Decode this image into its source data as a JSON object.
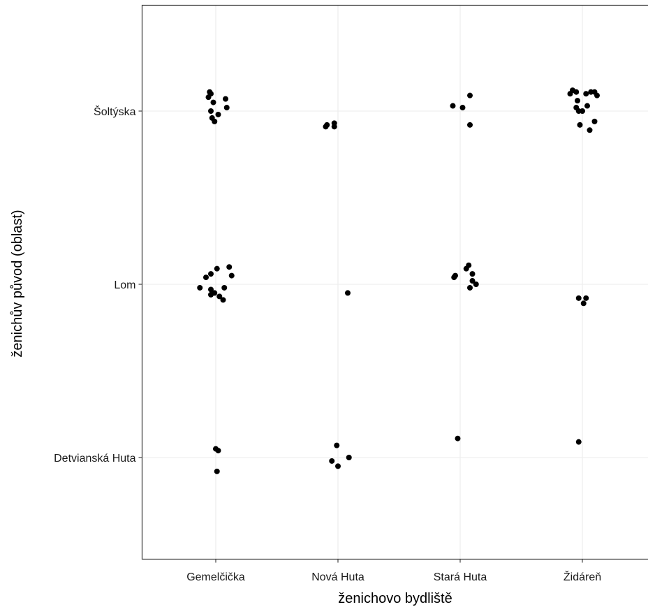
{
  "chart_data": {
    "type": "scatter",
    "xlabel": "ženichovo bydliště",
    "ylabel": "ženichův původ (oblast)",
    "x_categories": [
      "Gemelčička",
      "Nová Huta",
      "Stará Huta",
      "Židáreň"
    ],
    "y_categories": [
      "Detvianská Huta",
      "Lom",
      "Šoltýska"
    ],
    "grid": true,
    "point_color": "#000000",
    "panel_border_color": "#333333",
    "grid_color": "#ebebeb",
    "points": [
      {
        "x": 0.95,
        "y": 2.11
      },
      {
        "x": 0.96,
        "y": 2.1
      },
      {
        "x": 0.94,
        "y": 2.08
      },
      {
        "x": 0.98,
        "y": 2.05
      },
      {
        "x": 1.08,
        "y": 2.07
      },
      {
        "x": 1.09,
        "y": 2.02
      },
      {
        "x": 0.96,
        "y": 2.0
      },
      {
        "x": 1.02,
        "y": 1.98
      },
      {
        "x": 0.97,
        "y": 1.96
      },
      {
        "x": 0.99,
        "y": 1.94
      },
      {
        "x": 1.9,
        "y": 1.91
      },
      {
        "x": 1.91,
        "y": 1.92
      },
      {
        "x": 1.97,
        "y": 1.93
      },
      {
        "x": 1.97,
        "y": 1.91
      },
      {
        "x": 2.94,
        "y": 2.03
      },
      {
        "x": 3.02,
        "y": 2.02
      },
      {
        "x": 3.08,
        "y": 2.09
      },
      {
        "x": 3.08,
        "y": 1.92
      },
      {
        "x": 3.9,
        "y": 2.1
      },
      {
        "x": 3.92,
        "y": 2.12
      },
      {
        "x": 3.95,
        "y": 2.11
      },
      {
        "x": 4.03,
        "y": 2.1
      },
      {
        "x": 4.07,
        "y": 2.11
      },
      {
        "x": 4.1,
        "y": 2.11
      },
      {
        "x": 4.12,
        "y": 2.09
      },
      {
        "x": 3.96,
        "y": 2.06
      },
      {
        "x": 4.04,
        "y": 2.03
      },
      {
        "x": 3.95,
        "y": 2.02
      },
      {
        "x": 3.97,
        "y": 2.0
      },
      {
        "x": 4.0,
        "y": 2.0
      },
      {
        "x": 4.1,
        "y": 1.94
      },
      {
        "x": 3.98,
        "y": 1.92
      },
      {
        "x": 4.06,
        "y": 1.89
      },
      {
        "x": 0.87,
        "y": 0.98
      },
      {
        "x": 0.92,
        "y": 1.04
      },
      {
        "x": 0.96,
        "y": 1.06
      },
      {
        "x": 1.01,
        "y": 1.09
      },
      {
        "x": 1.11,
        "y": 1.1
      },
      {
        "x": 1.13,
        "y": 1.05
      },
      {
        "x": 0.96,
        "y": 0.97
      },
      {
        "x": 0.99,
        "y": 0.95
      },
      {
        "x": 0.96,
        "y": 0.94
      },
      {
        "x": 1.03,
        "y": 0.93
      },
      {
        "x": 1.06,
        "y": 0.91
      },
      {
        "x": 1.07,
        "y": 0.98
      },
      {
        "x": 2.08,
        "y": 0.95
      },
      {
        "x": 2.95,
        "y": 1.04
      },
      {
        "x": 2.96,
        "y": 1.05
      },
      {
        "x": 3.05,
        "y": 1.09
      },
      {
        "x": 3.07,
        "y": 1.11
      },
      {
        "x": 3.1,
        "y": 1.06
      },
      {
        "x": 3.1,
        "y": 1.02
      },
      {
        "x": 3.13,
        "y": 1.0
      },
      {
        "x": 3.08,
        "y": 0.98
      },
      {
        "x": 3.97,
        "y": 0.92
      },
      {
        "x": 4.03,
        "y": 0.92
      },
      {
        "x": 4.01,
        "y": 0.89
      },
      {
        "x": 1.0,
        "y": 0.05
      },
      {
        "x": 1.02,
        "y": 0.04
      },
      {
        "x": 1.01,
        "y": -0.08
      },
      {
        "x": 1.99,
        "y": 0.07
      },
      {
        "x": 2.09,
        "y": 0.0
      },
      {
        "x": 1.95,
        "y": -0.02
      },
      {
        "x": 2.0,
        "y": -0.05
      },
      {
        "x": 2.98,
        "y": 0.11
      },
      {
        "x": 3.97,
        "y": 0.09
      }
    ]
  }
}
